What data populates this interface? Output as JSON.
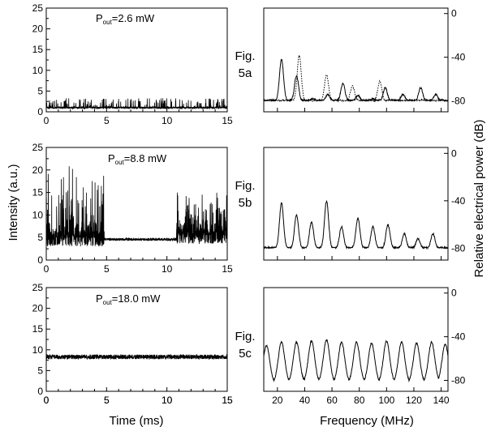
{
  "figure": {
    "ylabel_left": "Intensity (a.u.)",
    "ylabel_right": "Relative electrical power (dB)",
    "xlabel_time": "Time (ms)",
    "xlabel_freq": "Frequency (MHz)",
    "labels": [
      {
        "line1": "Fig.",
        "line2": "5a"
      },
      {
        "line1": "Fig.",
        "line2": "5b"
      },
      {
        "line1": "Fig.",
        "line2": "5c"
      }
    ]
  },
  "chart_data": [
    {
      "type": "line",
      "panel": "5a-time",
      "xlabel": "Time (ms)",
      "ylabel": "Intensity (a.u.)",
      "xlim": [
        0,
        15
      ],
      "ylim": [
        0,
        25
      ],
      "xticks": [
        0,
        5,
        10,
        15
      ],
      "yticks": [
        0,
        5,
        10,
        15,
        20,
        25
      ],
      "annotation": {
        "base": "P",
        "sub": "out",
        "rest": "=2.6 mW"
      },
      "signal": {
        "baseline": 1.0,
        "noise": 0.25,
        "spike_rate": 0.11,
        "spike_max": 2.3,
        "bursts": []
      }
    },
    {
      "type": "line",
      "panel": "5a-spectrum",
      "xlabel": "Frequency (MHz)",
      "ylabel": "Relative electrical power (dB)",
      "xlim": [
        10,
        145
      ],
      "ylim": [
        -90,
        5
      ],
      "yticks": [
        0,
        -40,
        -80
      ],
      "series": [
        {
          "name": "",
          "style": "solid",
          "floor": -80,
          "peak_freqs": [
            23,
            34,
            46,
            57,
            68,
            79,
            90,
            99,
            112,
            125,
            136
          ],
          "peak_levels": [
            -42,
            -57,
            -78,
            -74,
            -64,
            -75,
            -78,
            -68,
            -74,
            -68,
            -74
          ]
        },
        {
          "name": "",
          "style": "dotted",
          "floor": -80,
          "peak_freqs": [
            36,
            56,
            75,
            95
          ],
          "peak_levels": [
            -38,
            -56,
            -66,
            -62
          ]
        }
      ]
    },
    {
      "type": "line",
      "panel": "5b-time",
      "xlabel": "Time (ms)",
      "ylabel": "Intensity (a.u.)",
      "xlim": [
        0,
        15
      ],
      "ylim": [
        0,
        25
      ],
      "xticks": [
        0,
        5,
        10,
        15
      ],
      "yticks": [
        0,
        5,
        10,
        15,
        20,
        25
      ],
      "annotation": {
        "base": "P",
        "sub": "out",
        "rest": "=8.8 mW"
      },
      "signal": {
        "baseline": 4.6,
        "noise": 0.3,
        "spike_rate": 0,
        "spike_max": 0,
        "bursts": [
          {
            "start": 0,
            "end": 4.8,
            "floor": 3.0,
            "max": 23.5
          },
          {
            "start": 10.8,
            "end": 15,
            "floor": 3.5,
            "max": 16.5
          }
        ]
      }
    },
    {
      "type": "line",
      "panel": "5b-spectrum",
      "xlabel": "Frequency (MHz)",
      "ylabel": "Relative electrical power (dB)",
      "xlim": [
        10,
        145
      ],
      "ylim": [
        -90,
        5
      ],
      "yticks": [
        0,
        -40,
        -80
      ],
      "series": [
        {
          "name": "",
          "style": "solid",
          "floor": -80,
          "peak_freqs": [
            23,
            34,
            45,
            56,
            67,
            79,
            90,
            101,
            113,
            123,
            134
          ],
          "peak_levels": [
            -42,
            -52,
            -58,
            -40,
            -62,
            -55,
            -62,
            -60,
            -68,
            -72,
            -68
          ]
        }
      ]
    },
    {
      "type": "line",
      "panel": "5c-time",
      "xlabel": "Time (ms)",
      "ylabel": "Intensity (a.u.)",
      "xlim": [
        0,
        15
      ],
      "ylim": [
        0,
        25
      ],
      "xticks": [
        0,
        5,
        10,
        15
      ],
      "yticks": [
        0,
        5,
        10,
        15,
        20,
        25
      ],
      "annotation": {
        "base": "P",
        "sub": "out",
        "rest": "=18.0 mW"
      },
      "signal": {
        "baseline": 8.3,
        "noise": 0.55,
        "spike_rate": 0,
        "spike_max": 0,
        "bursts": []
      }
    },
    {
      "type": "line",
      "panel": "5c-spectrum",
      "xlabel": "Frequency (MHz)",
      "ylabel": "Relative electrical power (dB)",
      "xlim": [
        10,
        145
      ],
      "ylim": [
        -90,
        5
      ],
      "yticks": [
        0,
        -40,
        -80
      ],
      "xticks": [
        20,
        40,
        60,
        80,
        100,
        120,
        140
      ],
      "series": [
        {
          "name": "",
          "style": "solid",
          "floor": -82,
          "peak_freqs": [
            12,
            23,
            34,
            45,
            56,
            67,
            78,
            89,
            100,
            111,
            122,
            133,
            143
          ],
          "peak_levels": [
            -48,
            -45,
            -45,
            -44,
            -43,
            -45,
            -45,
            -46,
            -44,
            -45,
            -46,
            -45,
            -47
          ]
        }
      ]
    }
  ]
}
